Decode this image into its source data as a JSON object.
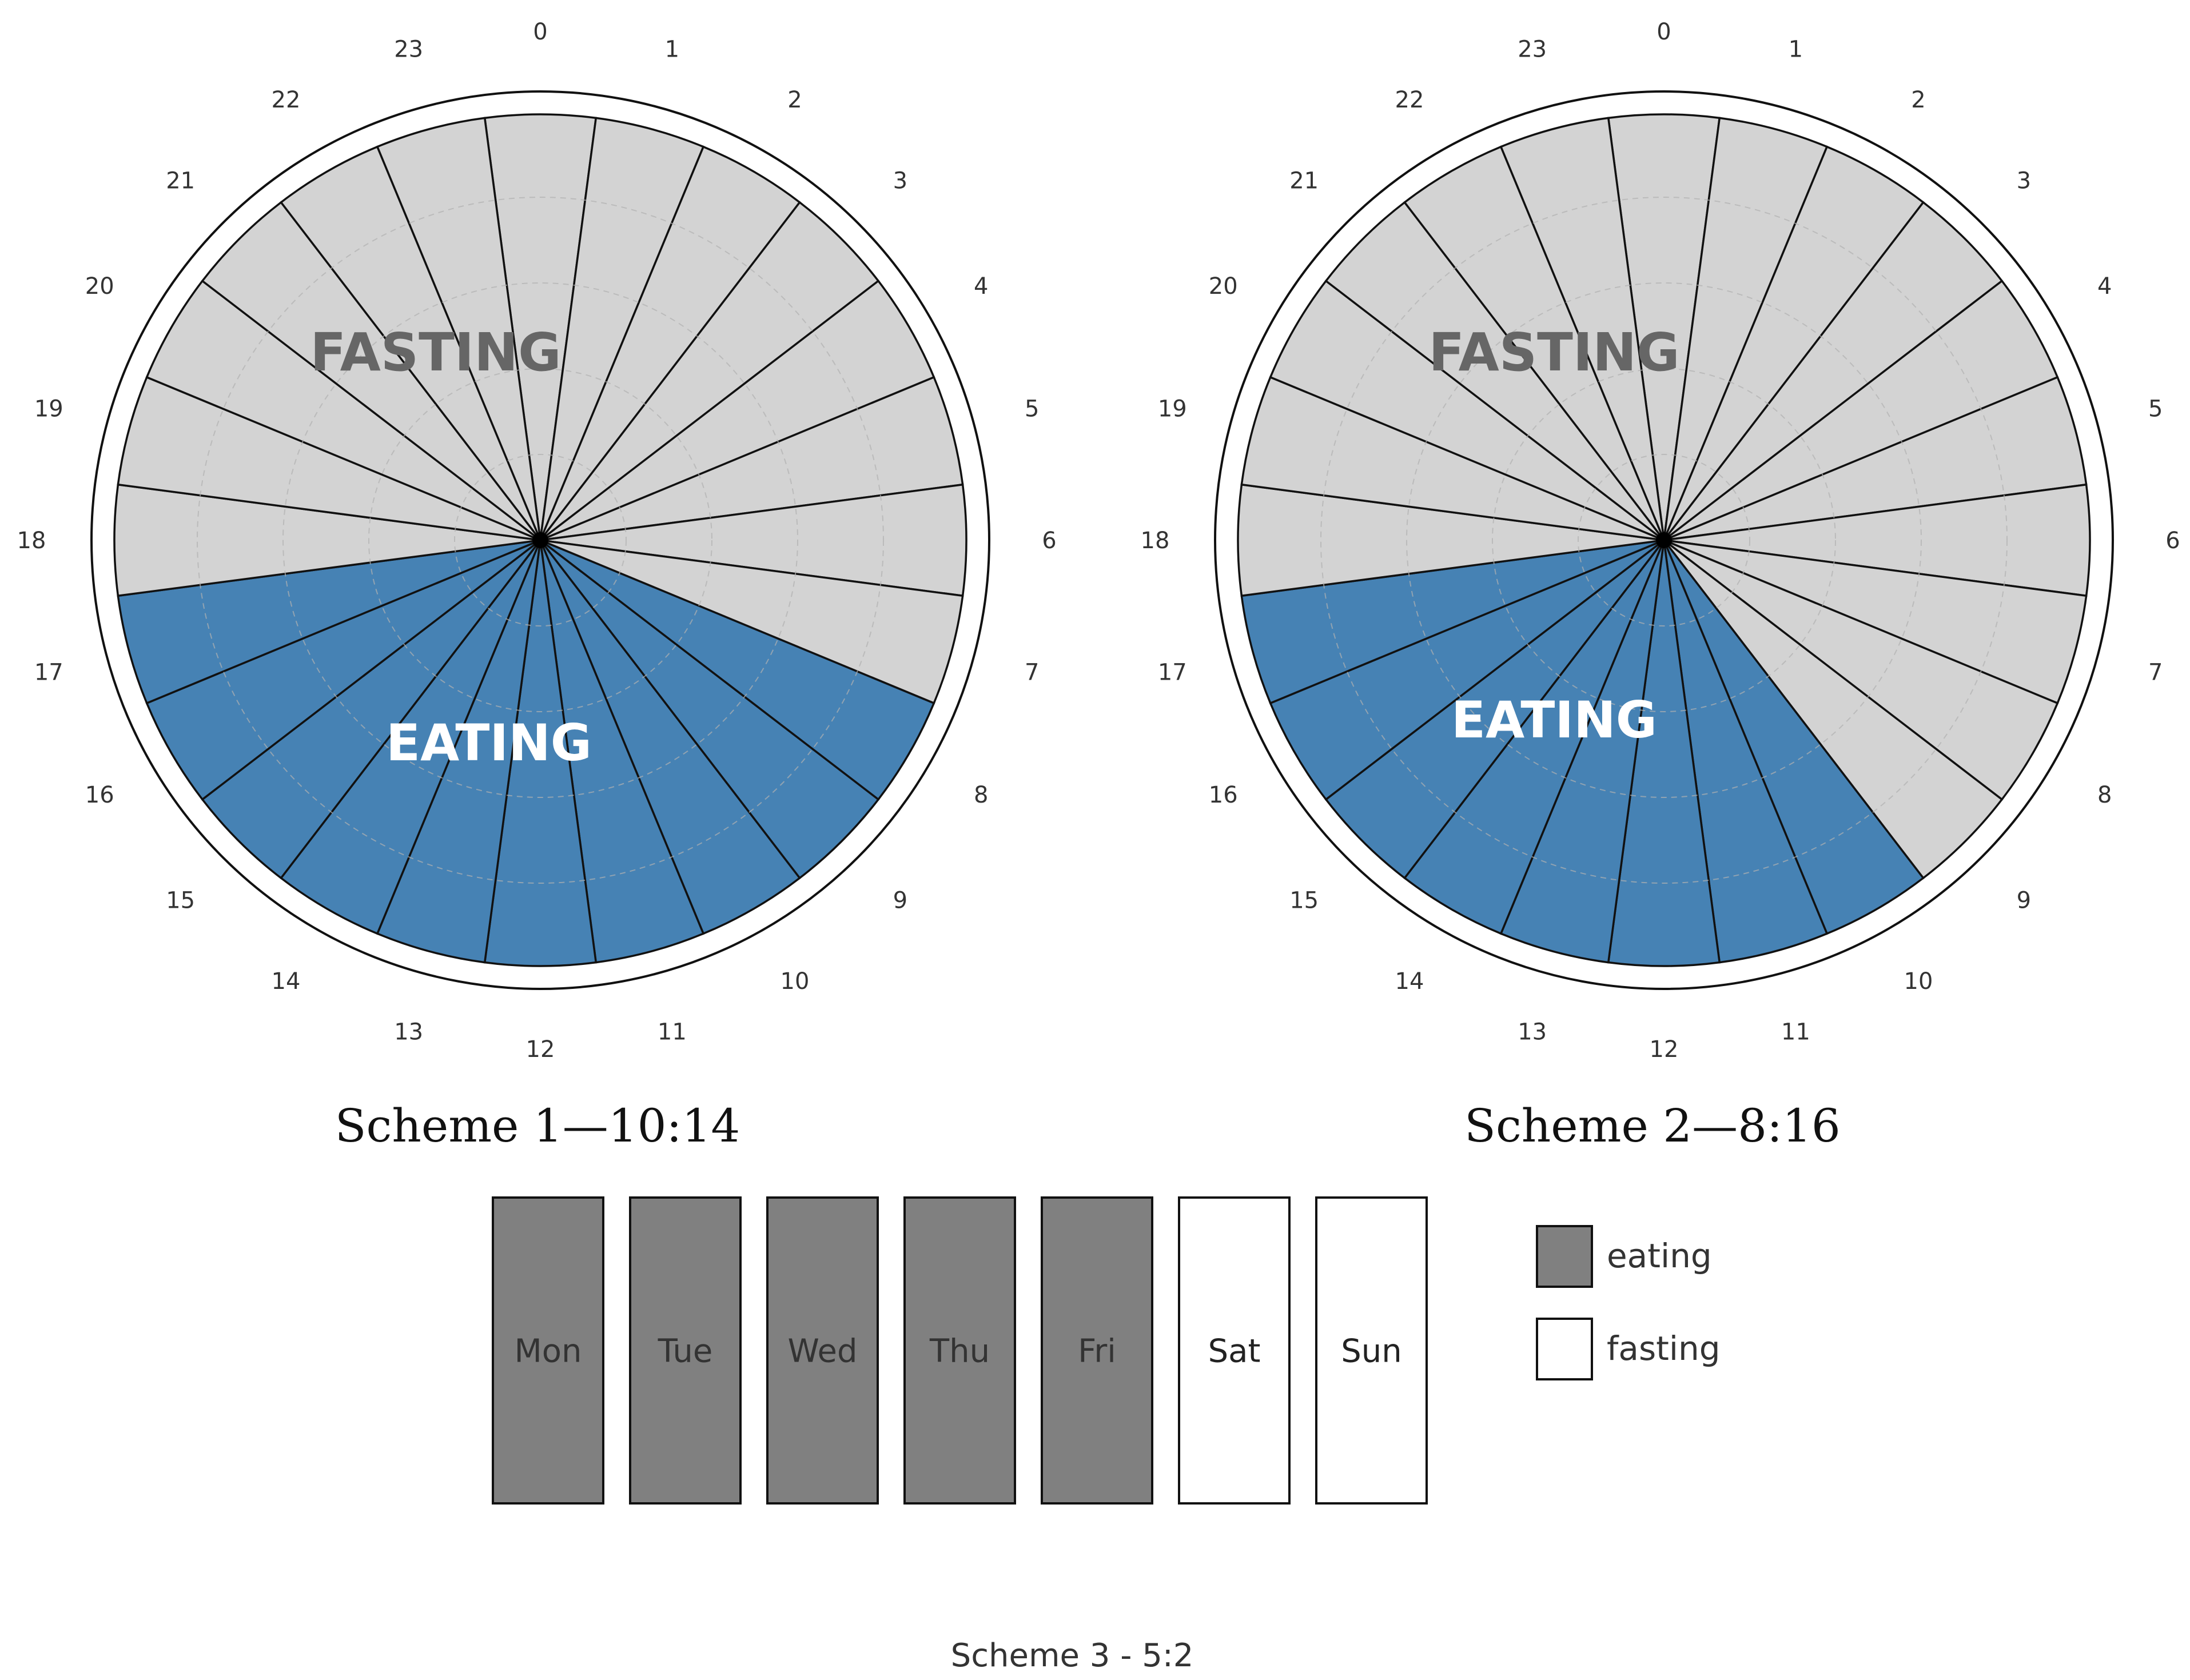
{
  "colors": {
    "eating_ring": "#4682b4",
    "fasting_ring": "#d3d3d3",
    "eating_day": "#808080",
    "fasting_day": "#ffffff",
    "fasting_text": "#666666",
    "eating_text": "#ffffff"
  },
  "chart_data": [
    {
      "type": "polar-bar",
      "title": "Scheme 1—10:14",
      "hours": [
        "0",
        "1",
        "2",
        "3",
        "4",
        "5",
        "6",
        "7",
        "8",
        "9",
        "10",
        "11",
        "12",
        "13",
        "14",
        "15",
        "16",
        "17",
        "18",
        "19",
        "20",
        "21",
        "22",
        "23"
      ],
      "eating_hours": [
        8,
        17
      ],
      "fasting_label": "FASTING",
      "eating_label": "EATING"
    },
    {
      "type": "polar-bar",
      "title": "Scheme 2—8:16",
      "hours": [
        "0",
        "1",
        "2",
        "3",
        "4",
        "5",
        "6",
        "7",
        "8",
        "9",
        "10",
        "11",
        "12",
        "13",
        "14",
        "15",
        "16",
        "17",
        "18",
        "19",
        "20",
        "21",
        "22",
        "23"
      ],
      "eating_hours": [
        10,
        17
      ],
      "fasting_label": "FASTING",
      "eating_label": "EATING"
    },
    {
      "type": "table",
      "title": "Scheme 3 - 5:2",
      "days": [
        {
          "label": "Mon",
          "state": "eating"
        },
        {
          "label": "Tue",
          "state": "eating"
        },
        {
          "label": "Wed",
          "state": "eating"
        },
        {
          "label": "Thu",
          "state": "eating"
        },
        {
          "label": "Fri",
          "state": "eating"
        },
        {
          "label": "Sat",
          "state": "fasting"
        },
        {
          "label": "Sun",
          "state": "fasting"
        }
      ],
      "legend": [
        {
          "label": "eating",
          "state": "eating"
        },
        {
          "label": "fasting",
          "state": "fasting"
        }
      ]
    }
  ]
}
